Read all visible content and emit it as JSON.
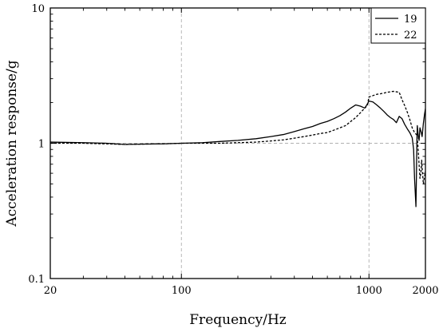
{
  "chart_data": {
    "type": "line",
    "title": "",
    "xlabel": "Frequency/Hz",
    "ylabel": "Acceleration response/g",
    "x_scale": "log",
    "y_scale": "log",
    "xlim": [
      20,
      2000
    ],
    "ylim": [
      0.1,
      10
    ],
    "x_major_ticks": [
      20,
      100,
      1000,
      2000
    ],
    "x_tick_labels": [
      "20",
      "100",
      "1000",
      "2000"
    ],
    "y_major_ticks": [
      0.1,
      1,
      10
    ],
    "y_tick_labels": [
      "0.1",
      "1",
      "10"
    ],
    "grid": true,
    "legend_position": "top-right",
    "series": [
      {
        "name": "19",
        "style": "solid",
        "color": "#000000",
        "points": [
          [
            20,
            1.02
          ],
          [
            30,
            1.01
          ],
          [
            40,
            1.0
          ],
          [
            50,
            0.98
          ],
          [
            60,
            0.985
          ],
          [
            80,
            0.99
          ],
          [
            100,
            1.0
          ],
          [
            130,
            1.01
          ],
          [
            160,
            1.03
          ],
          [
            200,
            1.05
          ],
          [
            250,
            1.08
          ],
          [
            300,
            1.12
          ],
          [
            350,
            1.16
          ],
          [
            400,
            1.22
          ],
          [
            450,
            1.28
          ],
          [
            500,
            1.33
          ],
          [
            550,
            1.4
          ],
          [
            600,
            1.45
          ],
          [
            650,
            1.52
          ],
          [
            700,
            1.6
          ],
          [
            750,
            1.7
          ],
          [
            800,
            1.82
          ],
          [
            850,
            1.92
          ],
          [
            900,
            1.88
          ],
          [
            950,
            1.82
          ],
          [
            980,
            1.95
          ],
          [
            1000,
            2.05
          ],
          [
            1050,
            2.02
          ],
          [
            1100,
            1.92
          ],
          [
            1150,
            1.82
          ],
          [
            1200,
            1.72
          ],
          [
            1250,
            1.62
          ],
          [
            1300,
            1.55
          ],
          [
            1350,
            1.5
          ],
          [
            1400,
            1.42
          ],
          [
            1450,
            1.58
          ],
          [
            1500,
            1.52
          ],
          [
            1550,
            1.38
          ],
          [
            1600,
            1.28
          ],
          [
            1650,
            1.2
          ],
          [
            1700,
            1.1
          ],
          [
            1730,
            0.9
          ],
          [
            1750,
            0.55
          ],
          [
            1770,
            0.4
          ],
          [
            1780,
            0.34
          ],
          [
            1790,
            0.55
          ],
          [
            1800,
            1.0
          ],
          [
            1810,
            1.35
          ],
          [
            1830,
            1.15
          ],
          [
            1850,
            1.05
          ],
          [
            1870,
            1.3
          ],
          [
            1900,
            1.2
          ],
          [
            1920,
            1.12
          ],
          [
            1950,
            1.4
          ],
          [
            1980,
            1.65
          ],
          [
            2000,
            1.8
          ]
        ]
      },
      {
        "name": "22",
        "style": "dashed",
        "color": "#000000",
        "points": [
          [
            20,
            1.0
          ],
          [
            30,
            1.0
          ],
          [
            40,
            0.99
          ],
          [
            50,
            0.98
          ],
          [
            60,
            0.985
          ],
          [
            80,
            0.99
          ],
          [
            100,
            1.0
          ],
          [
            130,
            1.0
          ],
          [
            160,
            1.0
          ],
          [
            200,
            1.01
          ],
          [
            250,
            1.02
          ],
          [
            300,
            1.04
          ],
          [
            350,
            1.06
          ],
          [
            400,
            1.09
          ],
          [
            450,
            1.12
          ],
          [
            500,
            1.15
          ],
          [
            550,
            1.18
          ],
          [
            600,
            1.2
          ],
          [
            650,
            1.25
          ],
          [
            700,
            1.3
          ],
          [
            750,
            1.35
          ],
          [
            800,
            1.45
          ],
          [
            850,
            1.55
          ],
          [
            900,
            1.68
          ],
          [
            950,
            1.82
          ],
          [
            980,
            1.9
          ],
          [
            1000,
            2.2
          ],
          [
            1050,
            2.25
          ],
          [
            1100,
            2.3
          ],
          [
            1150,
            2.32
          ],
          [
            1200,
            2.35
          ],
          [
            1250,
            2.38
          ],
          [
            1300,
            2.4
          ],
          [
            1350,
            2.42
          ],
          [
            1400,
            2.4
          ],
          [
            1450,
            2.38
          ],
          [
            1500,
            2.1
          ],
          [
            1550,
            1.9
          ],
          [
            1600,
            1.7
          ],
          [
            1650,
            1.5
          ],
          [
            1700,
            1.3
          ],
          [
            1750,
            1.2
          ],
          [
            1800,
            1.15
          ],
          [
            1820,
            1.0
          ],
          [
            1850,
            0.7
          ],
          [
            1870,
            0.55
          ],
          [
            1890,
            0.6
          ],
          [
            1910,
            0.75
          ],
          [
            1930,
            0.6
          ],
          [
            1950,
            0.5
          ],
          [
            1970,
            0.55
          ],
          [
            2000,
            0.62
          ]
        ]
      }
    ]
  }
}
